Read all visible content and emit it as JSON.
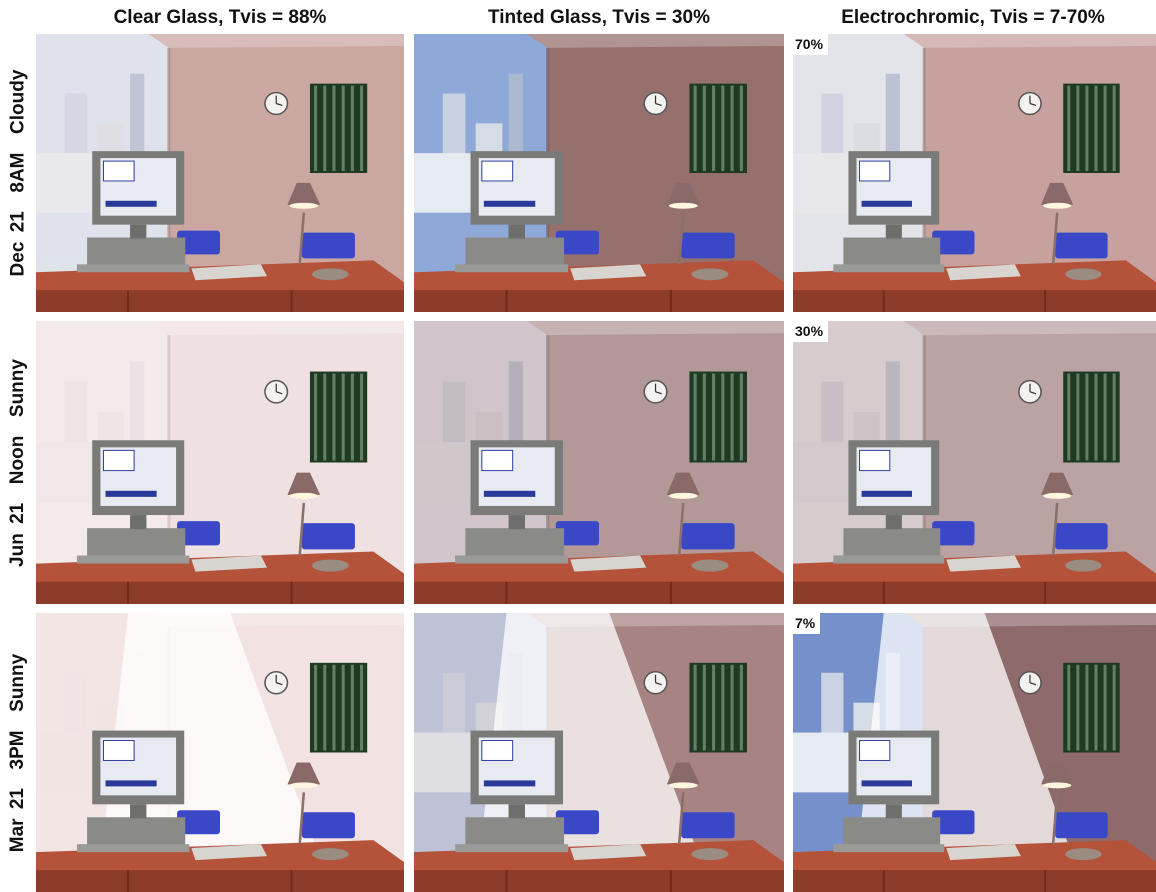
{
  "columns": [
    {
      "label": "Clear Glass, Tvis = 88%"
    },
    {
      "label": "Tinted Glass, Tvis = 30%"
    },
    {
      "label": "Electrochromic, Tvis = 7-70%"
    }
  ],
  "rows": [
    {
      "label": "Dec 21  8AM  Cloudy"
    },
    {
      "label": "Jun 21  Noon  Sunny"
    },
    {
      "label": "Mar 21  3PM  Sunny"
    }
  ],
  "electrochromic_tints": [
    "70%",
    "30%",
    "7%"
  ],
  "colors": {
    "wall": "#b88880",
    "desk": "#b4523a",
    "chair": "#3a48c8",
    "sky": "#8aa4d4"
  }
}
